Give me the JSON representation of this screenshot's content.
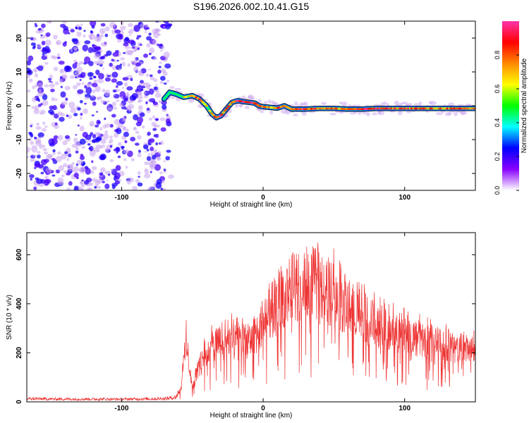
{
  "figure_title": "S196.2026.002.10.41.G15",
  "colors": {
    "snr_line": "#ee3333",
    "frame": "#000000",
    "scatter": "#8a2be2"
  },
  "chart_data": [
    {
      "type": "heatmap",
      "title": "S196.2026.002.10.41.G15",
      "xlabel": "Height of straight line (km)",
      "ylabel": "Frequency (Hz)",
      "xlim": [
        -167,
        150
      ],
      "ylim": [
        -25,
        25
      ],
      "x_ticks": [
        -100,
        0,
        100
      ],
      "y_ticks": [
        -20,
        -10,
        0,
        10,
        20
      ],
      "grid": false,
      "colorbar": {
        "label": "Normalized spectral amplitude",
        "range": [
          0,
          1
        ],
        "ticks": [
          "0.0",
          "0.2",
          "0.4",
          "0.6",
          "0.8"
        ],
        "colormap": [
          "#ffffff",
          "#8800ff",
          "#0000ff",
          "#00ffff",
          "#00ff00",
          "#ffff00",
          "#ff8800",
          "#ff0000",
          "#ff33aa"
        ]
      },
      "noise_region_x": [
        -167,
        -67
      ],
      "ridge": {
        "x": [
          -70,
          -66,
          -62,
          -56,
          -50,
          -45,
          -40,
          -36,
          -33,
          -30,
          -26,
          -22,
          -18,
          -14,
          -10,
          -6,
          -3,
          0,
          5,
          10,
          15,
          20,
          30,
          40,
          50,
          60,
          70,
          80,
          90,
          100,
          110,
          120,
          130,
          140,
          150
        ],
        "y": [
          2,
          4,
          3.5,
          2.5,
          3,
          2,
          0,
          -2.5,
          -3.5,
          -3,
          -1,
          1,
          1.5,
          1.2,
          1,
          0.8,
          0,
          -0.3,
          -0.5,
          -0.7,
          0,
          -1,
          -1,
          -0.8,
          -0.8,
          -1,
          -1,
          -0.8,
          -0.8,
          -0.8,
          -0.8,
          -0.8,
          -0.8,
          -0.8,
          -0.8
        ],
        "amplitude": [
          0.35,
          0.5,
          0.45,
          0.6,
          0.75,
          0.8,
          0.65,
          0.7,
          0.85,
          0.9,
          0.75,
          0.8,
          0.9,
          0.95,
          0.95,
          0.9,
          0.8,
          0.75,
          0.7,
          0.8,
          0.85,
          0.8,
          0.9,
          0.8,
          0.75,
          0.8,
          0.85,
          0.9,
          0.8,
          0.85,
          0.8,
          0.75,
          0.8,
          0.75,
          0.75
        ]
      }
    },
    {
      "type": "line",
      "xlabel": "Height of straight line (km)",
      "ylabel": "SNR (10 * v/v)",
      "xlim": [
        -167,
        150
      ],
      "ylim": [
        0,
        690
      ],
      "x_ticks": [
        -100,
        0,
        100
      ],
      "y_ticks": [
        0,
        200,
        400,
        600
      ],
      "grid": false,
      "series": [
        {
          "envelope_x": [
            -167,
            -150,
            -100,
            -70,
            -62,
            -58,
            -54,
            -52,
            -50,
            -46,
            -42,
            -38,
            -32,
            -28,
            -22,
            -18,
            -14,
            -10,
            -6,
            -2,
            2,
            6,
            10,
            14,
            18,
            22,
            26,
            30,
            34,
            38,
            42,
            46,
            50,
            54,
            58,
            62,
            66,
            70,
            74,
            78,
            82,
            86,
            90,
            94,
            98,
            102,
            106,
            110,
            114,
            118,
            122,
            126,
            130,
            134,
            138,
            142,
            146,
            150
          ],
          "envelope_y": [
            18,
            16,
            15,
            18,
            25,
            70,
            360,
            150,
            60,
            170,
            230,
            270,
            300,
            290,
            320,
            330,
            340,
            300,
            340,
            380,
            430,
            470,
            490,
            530,
            560,
            590,
            600,
            610,
            610,
            600,
            580,
            560,
            550,
            520,
            500,
            470,
            450,
            440,
            420,
            400,
            390,
            380,
            370,
            360,
            350,
            340,
            330,
            320,
            310,
            300,
            295,
            290,
            280,
            275,
            270,
            265,
            260,
            255
          ]
        }
      ]
    }
  ]
}
